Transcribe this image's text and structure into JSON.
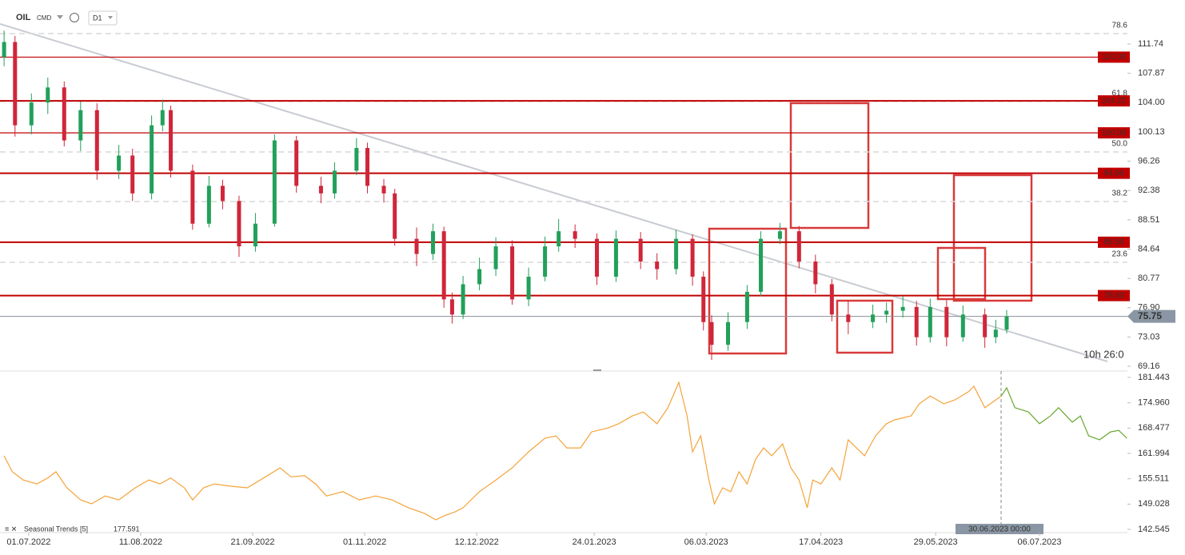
{
  "chart_data": {
    "type": "candlestick",
    "header": {
      "symbol": "OIL",
      "market": "CMD",
      "timeframe": "D1"
    },
    "xlim": [
      -10.5,
      402.2
    ],
    "xticks": [
      {
        "value": 0,
        "label": "01.07.2022"
      },
      {
        "value": 41,
        "label": "11.08.2022"
      },
      {
        "value": 82,
        "label": "21.09.2022"
      },
      {
        "value": 123,
        "label": "01.11.2022"
      },
      {
        "value": 164,
        "label": "12.12.2022"
      },
      {
        "value": 207,
        "label": "24.01.2023"
      },
      {
        "value": 248,
        "label": "06.03.2023"
      },
      {
        "value": 290,
        "label": "17.04.2023"
      },
      {
        "value": 332,
        "label": "29.05.2023"
      },
      {
        "value": 370,
        "label": "06.07.2023"
      }
    ],
    "ylim": [
      68.74,
      114.38
    ],
    "yticks": [
      111.74,
      107.87,
      {
        "value": 104,
        "label": "104.00"
      },
      100.13,
      96.26,
      92.38,
      88.51,
      84.64,
      80.77,
      {
        "value": 76.9,
        "label": "76.90"
      },
      73.03,
      69.16
    ],
    "up_color": "#22a05a",
    "down_color": "#d0263a",
    "ohlc": {
      "x": [
        -9,
        -5,
        1,
        7,
        13,
        19,
        25,
        33,
        38,
        45,
        49,
        52,
        60,
        66,
        71,
        77,
        83,
        90,
        98,
        107,
        112,
        120,
        124,
        130,
        134,
        142,
        148,
        152,
        155,
        159,
        165,
        171,
        177,
        183,
        189,
        194,
        200,
        208,
        215,
        224,
        230,
        237,
        243,
        247,
        250,
        256,
        263,
        268,
        275,
        282,
        288,
        294,
        300,
        309,
        314,
        320,
        325,
        330,
        336,
        342,
        350,
        354,
        358
      ],
      "open": [
        110,
        112,
        101,
        104,
        106,
        99,
        103,
        95,
        97,
        92,
        101,
        103,
        95,
        88,
        93,
        91,
        85,
        88,
        99,
        93,
        92,
        95,
        98,
        93,
        92,
        86,
        84,
        87,
        78,
        76,
        80,
        82,
        85,
        78,
        81,
        85,
        87,
        86,
        81,
        86,
        83,
        82,
        86,
        81,
        75,
        72,
        75,
        79,
        86,
        87,
        83,
        80,
        76,
        75,
        76,
        76.5,
        77,
        73,
        77,
        73,
        76,
        73,
        74
      ],
      "high": [
        113.5,
        112.8,
        105.2,
        107.3,
        106.8,
        104.1,
        103.9,
        98.4,
        97.9,
        102.3,
        104.4,
        103.6,
        95.8,
        94.3,
        93.8,
        91.7,
        89.4,
        99.8,
        99.6,
        94.2,
        96.1,
        99.3,
        98.7,
        93.9,
        92.6,
        87.5,
        88.0,
        87.6,
        78.9,
        81.1,
        83.5,
        86.2,
        85.8,
        82.2,
        86.3,
        88.6,
        87.9,
        86.7,
        87.1,
        86.9,
        84.1,
        87.2,
        86.6,
        81.7,
        75.9,
        76.3,
        79.9,
        87.0,
        88.1,
        87.7,
        83.9,
        80.7,
        77.8,
        77.3,
        77.6,
        78.4,
        77.8,
        78.1,
        77.9,
        77.2,
        76.8,
        75.3,
        76.6
      ],
      "low": [
        108.8,
        99.5,
        99.8,
        102.5,
        98.2,
        97.6,
        93.8,
        93.9,
        91.0,
        91.2,
        100.2,
        94.1,
        87.2,
        87.5,
        89.9,
        83.6,
        84.3,
        87.6,
        92.1,
        90.7,
        91.3,
        94.4,
        92.0,
        90.8,
        85.1,
        82.4,
        83.2,
        76.9,
        74.8,
        75.4,
        79.2,
        81.1,
        77.3,
        77.1,
        80.4,
        84.3,
        84.8,
        79.9,
        80.3,
        82.0,
        80.6,
        81.3,
        79.8,
        73.9,
        70.0,
        71.2,
        74.1,
        78.4,
        85.3,
        82.1,
        78.8,
        75.1,
        73.4,
        74.2,
        74.9,
        75.6,
        71.9,
        72.3,
        71.8,
        72.4,
        71.6,
        72.2,
        73.5
      ],
      "close": [
        112,
        101,
        104,
        106,
        99,
        103,
        95,
        97,
        92,
        101,
        103,
        95,
        88,
        93,
        91,
        85,
        88,
        99,
        93,
        92,
        95,
        98,
        93,
        92,
        86,
        84,
        87,
        78,
        76,
        80,
        82,
        85,
        78,
        81,
        85,
        87,
        86,
        81,
        86,
        83,
        82,
        86,
        81,
        75,
        72,
        75,
        79,
        86,
        87,
        83,
        80,
        76,
        75,
        76,
        76.5,
        77,
        73,
        77,
        73,
        76,
        73,
        74,
        75.75
      ]
    },
    "levels": [
      {
        "value": 110,
        "label": "110.00"
      },
      {
        "value": 104.22,
        "label": "104.22"
      },
      {
        "value": 100,
        "label": "100.00"
      },
      {
        "value": 94.66,
        "label": "94.66"
      },
      {
        "value": 85.55,
        "label": "85.55"
      },
      {
        "value": 78.5,
        "label": "78.50"
      }
    ],
    "level_color": "#c00000",
    "fib": [
      {
        "price": 113.11,
        "label": "78.6"
      },
      {
        "price": 104.14,
        "label": "61.8"
      },
      {
        "price": 97.48,
        "label": "50.0"
      },
      {
        "price": 90.93,
        "label": "38.2"
      },
      {
        "price": 82.9,
        "label": "23.6"
      }
    ],
    "last_price": 75.75,
    "countdown": "10h 26:0",
    "crosshair_label": "30.06.2023 00:00",
    "indicator": {
      "name": "Seasonal Trends [5]",
      "value": 177.591,
      "ylim": [
        142.545,
        181.443
      ],
      "yticks": [
        181.443,
        {
          "value": 174.96,
          "label": "174.960"
        },
        168.477,
        161.994,
        155.511,
        149.028,
        142.545
      ],
      "series": [
        {
          "color": "#f5a33a",
          "x": [
            -9,
            -6,
            -2,
            3,
            7,
            10,
            14,
            19,
            23,
            28,
            33,
            39,
            44,
            48,
            52,
            57,
            60,
            64,
            68,
            74,
            80,
            86,
            92,
            96,
            101,
            105,
            109,
            115,
            121,
            127,
            133,
            139,
            145,
            149,
            152,
            156,
            159,
            165,
            171,
            177,
            183,
            189,
            193,
            197,
            202,
            206,
            212,
            216,
            221,
            225,
            230,
            234,
            238,
            241,
            243,
            246,
            249,
            251,
            254,
            257,
            260,
            263,
            266,
            269,
            272,
            276,
            279,
            282,
            285,
            287,
            290,
            294,
            297,
            300,
            303,
            306,
            310,
            314,
            317,
            323,
            326,
            330,
            335,
            339,
            344,
            346,
            350,
            354,
            356
          ],
          "values": [
            161.4,
            157.3,
            155.2,
            154.2,
            155.7,
            157.3,
            153.2,
            150.1,
            149.1,
            151.1,
            150.1,
            153.2,
            155.2,
            154.2,
            155.7,
            153.2,
            150.1,
            153.2,
            154.2,
            153.6,
            153.2,
            155.7,
            158.3,
            156.0,
            156.3,
            154.2,
            151.1,
            152.2,
            150.1,
            151.1,
            150.1,
            148.1,
            146.6,
            145.0,
            146.0,
            147.0,
            148.1,
            152.2,
            155.2,
            158.3,
            162.4,
            165.9,
            166.5,
            163.4,
            163.4,
            167.5,
            168.5,
            169.6,
            171.6,
            172.6,
            169.6,
            173.7,
            180.2,
            171.6,
            162.4,
            166.5,
            155.2,
            149.1,
            153.2,
            152.2,
            157.3,
            154.2,
            160.4,
            163.4,
            161.4,
            164.4,
            158.3,
            155.2,
            148.1,
            155.2,
            154.2,
            158.3,
            155.2,
            165.5,
            163.4,
            161.4,
            166.5,
            169.6,
            170.6,
            171.6,
            174.7,
            176.7,
            174.7,
            175.7,
            177.8,
            179.2,
            173.7,
            175.7,
            176.7
          ]
        },
        {
          "color": "#6aa832",
          "x": [
            356,
            358,
            361,
            366,
            370,
            374,
            377,
            382,
            385,
            388,
            392,
            396,
            399,
            402
          ],
          "values": [
            176.7,
            178.8,
            173.7,
            172.6,
            169.6,
            171.6,
            173.7,
            170.0,
            171.6,
            166.5,
            165.5,
            167.5,
            167.9,
            165.9
          ]
        }
      ]
    }
  }
}
